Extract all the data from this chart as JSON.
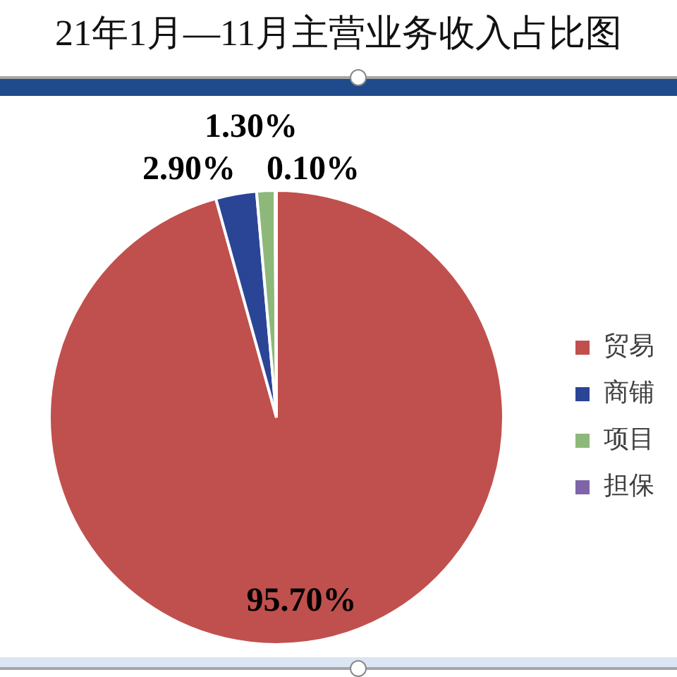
{
  "chart_data": {
    "type": "pie",
    "title": "21年1月—11月主营业务收入占比图",
    "categories": [
      "贸易",
      "商铺",
      "项目",
      "担保"
    ],
    "values": [
      95.7,
      2.9,
      1.3,
      0.1
    ],
    "colors": [
      "#c0504d",
      "#2b4596",
      "#8db87a",
      "#7e65a8"
    ],
    "value_labels": [
      "95.70%",
      "2.90%",
      "1.30%",
      "0.10%"
    ],
    "legend": "right"
  }
}
